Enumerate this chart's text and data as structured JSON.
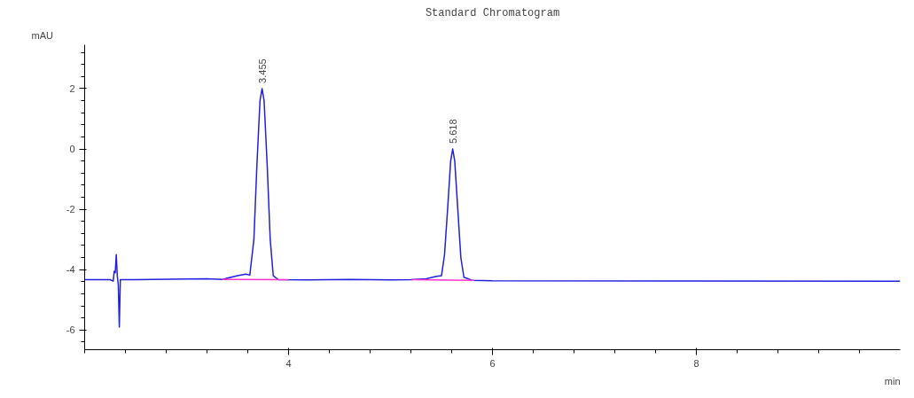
{
  "chart_data": {
    "type": "line",
    "title": "Standard Chromatogram",
    "xlabel": "min",
    "ylabel": "mAU",
    "xlim": [
      2.0,
      10.0
    ],
    "ylim": [
      -6.65,
      3.45
    ],
    "xticks": [
      4,
      6,
      8
    ],
    "yticks": [
      -6,
      -4,
      -2,
      0,
      2
    ],
    "grid": false,
    "marker": "none",
    "line_style": "solid",
    "series": [
      {
        "color": "#2020e0",
        "x": [
          2.0,
          2.25,
          2.28,
          2.29,
          2.3,
          2.31,
          2.32,
          2.33,
          2.34,
          2.35,
          2.5,
          3.0,
          3.2,
          3.35,
          3.5,
          3.58,
          3.62,
          3.66,
          3.69,
          3.72,
          3.74,
          3.76,
          3.79,
          3.82,
          3.85,
          3.9,
          4.2,
          4.6,
          5.0,
          5.2,
          5.35,
          5.45,
          5.5,
          5.53,
          5.56,
          5.59,
          5.61,
          5.63,
          5.66,
          5.69,
          5.72,
          5.8,
          6.0,
          10.0
        ],
        "values": [
          -4.33,
          -4.33,
          -4.38,
          -4.05,
          -4.1,
          -3.5,
          -4.2,
          -4.5,
          -5.9,
          -4.33,
          -4.33,
          -4.31,
          -4.3,
          -4.32,
          -4.2,
          -4.15,
          -4.18,
          -3.0,
          -0.5,
          1.6,
          2.0,
          1.6,
          -0.5,
          -3.0,
          -4.2,
          -4.33,
          -4.34,
          -4.32,
          -4.34,
          -4.33,
          -4.3,
          -4.22,
          -4.2,
          -3.5,
          -2.0,
          -0.4,
          0.0,
          -0.4,
          -2.0,
          -3.6,
          -4.25,
          -4.35,
          -4.37,
          -4.38
        ]
      },
      {
        "color": "#ff33cc",
        "x": [
          3.35,
          4.0,
          4.01,
          5.21,
          5.82
        ],
        "values": [
          -4.32,
          -4.33,
          null,
          -4.33,
          -4.35
        ]
      }
    ],
    "annotations": [
      {
        "text": "3.455",
        "x": 3.74,
        "y": 2.0
      },
      {
        "text": "5.618",
        "x": 5.61,
        "y": 0.0
      }
    ]
  }
}
